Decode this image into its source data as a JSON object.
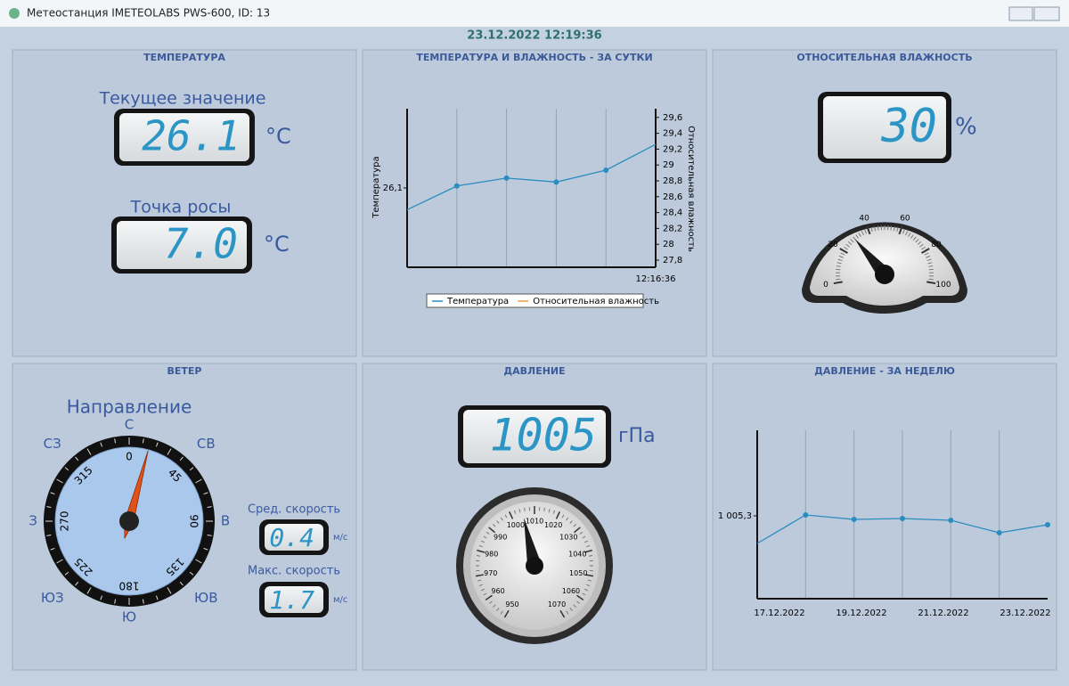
{
  "window": {
    "title": "Метеостанция IMETEOLABS PWS-600, ID: 13"
  },
  "datetime": "23.12.2022 12:19:36",
  "temperature": {
    "title": "ТЕМПЕРАТУРА",
    "current_label": "Текущее значение",
    "current": 26.1,
    "current_unit": "°C",
    "dew_label": "Точка росы",
    "dew": "7.0",
    "dew_unit": "°C"
  },
  "day_chart": {
    "title": "ТЕМПЕРАТУРА И ВЛАЖНОСТЬ - ЗА СУТКИ",
    "y_label": "Температура",
    "y2_label": "Относительная влажность",
    "x_label": "12:16:36",
    "ylim": [
      25.7,
      26.5
    ],
    "yticks": [
      {
        "value": 26.1,
        "label": "26,1"
      }
    ],
    "y2lim": [
      27.71,
      29.71
    ],
    "y2ticks": [
      {
        "value": 29.6,
        "label": "29,6"
      },
      {
        "value": 29.4,
        "label": "29,4"
      },
      {
        "value": 29.2,
        "label": "29,2"
      },
      29,
      {
        "value": 28.8,
        "label": "28,8"
      },
      {
        "value": 28.6,
        "label": "28,6"
      },
      {
        "value": 28.4,
        "label": "28,4"
      },
      {
        "value": 28.2,
        "label": "28,2"
      },
      28,
      {
        "value": 27.8,
        "label": "27,8"
      }
    ],
    "values": [
      25.99,
      26.11,
      26.15,
      26.13,
      26.19,
      26.32
    ],
    "legend": [
      {
        "name": "Температура",
        "color": "#2b8cbf"
      },
      {
        "name": "Относительная влажность",
        "color": "#e8a040"
      }
    ]
  },
  "humidity": {
    "title": "ОТНОСИТЕЛЬНАЯ ВЛАЖНОСТЬ",
    "value": 30,
    "unit": "%",
    "gauge_ticks": [
      0,
      20,
      40,
      60,
      80,
      100
    ]
  },
  "wind": {
    "title": "ВЕТЕР",
    "direction_label": "Направление",
    "direction_deg": 15,
    "compass": [
      "С",
      "СВ",
      "В",
      "ЮВ",
      "Ю",
      "ЮЗ",
      "З",
      "СЗ"
    ],
    "degrees": [
      0,
      45,
      90,
      135,
      180,
      225,
      270,
      315
    ],
    "avg_label": "Сред. скорость",
    "avg": 0.4,
    "avg_unit": "м/с",
    "max_label": "Макс. скорость",
    "max": 1.7,
    "max_unit": "м/с"
  },
  "pressure": {
    "title": "ДАВЛЕНИЕ",
    "value": 1005,
    "unit": "гПа",
    "gauge_ticks": [
      950,
      960,
      970,
      980,
      990,
      1000,
      1010,
      1020,
      1030,
      1040,
      1050,
      1060,
      1070
    ]
  },
  "week_chart": {
    "title": "ДАВЛЕНИЕ - ЗА НЕДЕЛЮ",
    "ylim": [
      1004.835,
      1005.78
    ],
    "yticks": [
      {
        "value": 1005.3,
        "label": "1 005,3"
      }
    ],
    "x_labels": [
      "17.12.2022",
      "19.12.2022",
      "21.12.2022",
      "23.12.2022"
    ],
    "values": [
      1005.145,
      1005.305,
      1005.28,
      1005.285,
      1005.275,
      1005.205,
      1005.25
    ],
    "color": "#2b8cbf"
  }
}
